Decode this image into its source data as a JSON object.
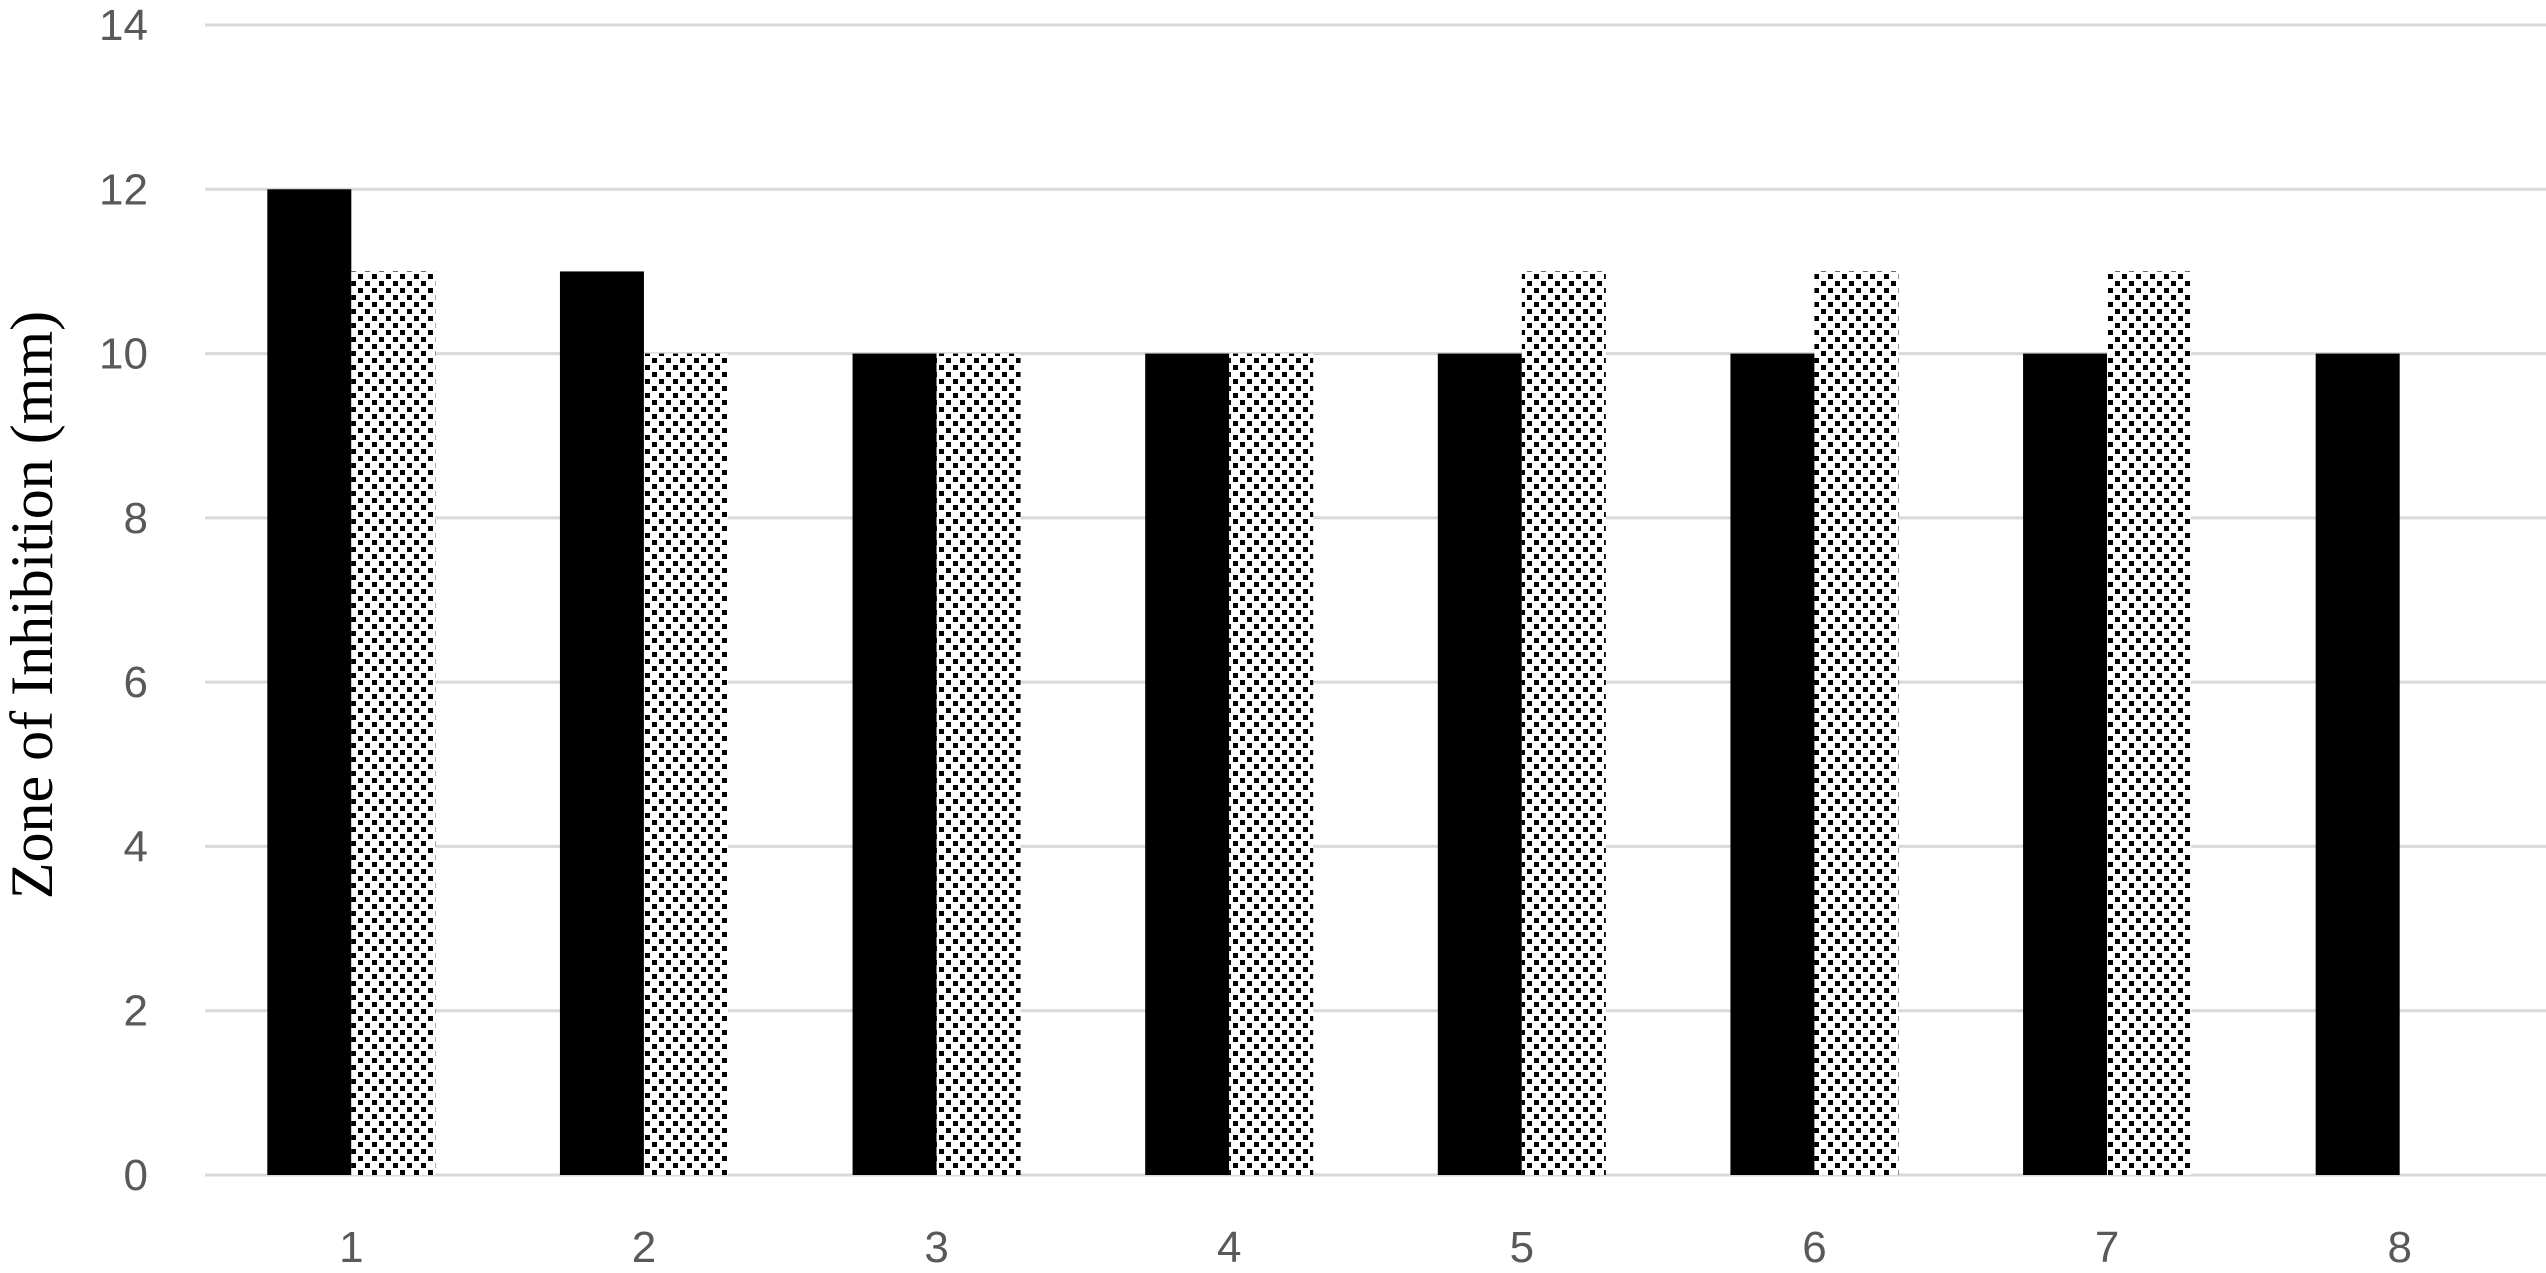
{
  "chart_data": {
    "type": "bar",
    "title": "",
    "xlabel": "",
    "ylabel": "Zone of Inhibition (mm)",
    "categories": [
      "1",
      "2",
      "3",
      "4",
      "5",
      "6",
      "7",
      "8"
    ],
    "series": [
      {
        "values": [
          12,
          11,
          10,
          10,
          10,
          10,
          10,
          10
        ],
        "fill": "solid",
        "color": "#000000"
      },
      {
        "values": [
          11,
          10,
          10,
          10,
          11,
          11,
          11,
          null
        ],
        "fill": "dotted",
        "color": "#000000"
      }
    ],
    "ylim": [
      0,
      14
    ],
    "yticks": [
      "0",
      "2",
      "4",
      "6",
      "8",
      "10",
      "12",
      "14"
    ],
    "grid": true,
    "legend": "none"
  }
}
